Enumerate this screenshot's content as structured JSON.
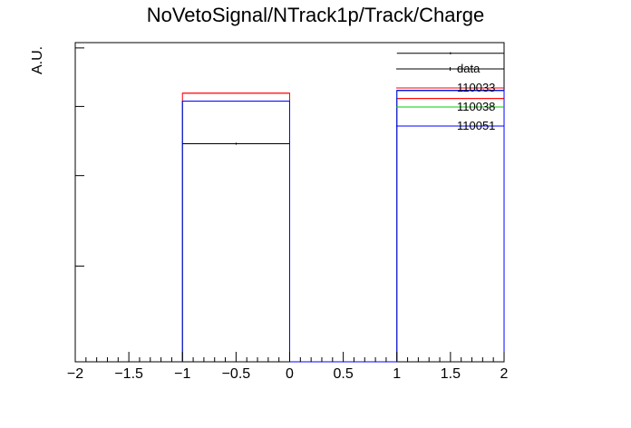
{
  "chart_data": {
    "type": "histogram",
    "title": "NoVetoSignal/NTrack1p/Track/Charge",
    "xlabel": "",
    "ylabel": "A.U.",
    "xlim": [
      -2,
      2
    ],
    "ylim": [
      0,
      0.6
    ],
    "x_ticks": [
      -2,
      -1.5,
      -1,
      -0.5,
      0,
      0.5,
      1,
      1.5,
      2
    ],
    "x_tick_labels": [
      "−2",
      "−1.5",
      "−1",
      "−0.5",
      "0",
      "0.5",
      "1",
      "1.5",
      "2"
    ],
    "y_tick_values": [
      0.18,
      0.35,
      0.48,
      0.59
    ],
    "show_y_tick_labels": false,
    "bin_edges": [
      -1,
      0,
      1,
      2
    ],
    "legend_position": "top-right",
    "series": [
      {
        "name": "data",
        "color": "#000000",
        "style": "points",
        "values": [
          0.41,
          0.0,
          0.58
        ],
        "errors": [
          0.002,
          0.0,
          0.002
        ]
      },
      {
        "name": "110033",
        "color": "#ff0000",
        "style": "step",
        "values": [
          0.505,
          0.0,
          0.495
        ]
      },
      {
        "name": "110038",
        "color": "#00cc00",
        "style": "step",
        "values": [
          0.49,
          0.0,
          0.51
        ]
      },
      {
        "name": "110051",
        "color": "#0000ff",
        "style": "step",
        "values": [
          0.49,
          0.0,
          0.51
        ]
      }
    ]
  }
}
